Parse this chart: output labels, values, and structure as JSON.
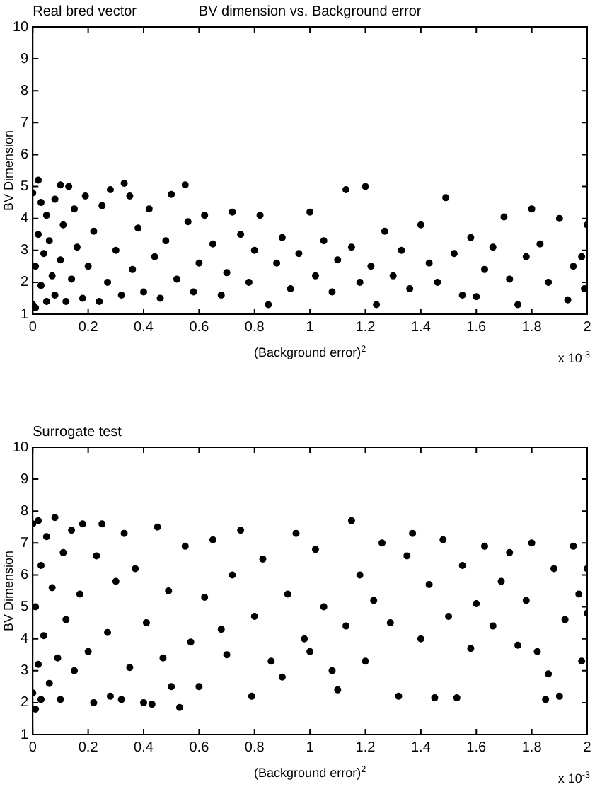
{
  "chart_data": [
    {
      "type": "scatter",
      "title": "BV dimension vs. Background error",
      "subtitle": "Real bred vector",
      "xlabel": "(Background error)$^{2}$",
      "ylabel": "BV Dimension",
      "annotations": [
        "x 10$^{-3}$"
      ],
      "xlim": [
        0,
        2
      ],
      "xticks": [
        0,
        0.2,
        0.4,
        0.6,
        0.8,
        1,
        1.2,
        1.4,
        1.6,
        1.8,
        2
      ],
      "ylim": [
        1,
        10
      ],
      "yticks": [
        1,
        2,
        3,
        4,
        5,
        6,
        7,
        8,
        9,
        10
      ],
      "grid": false,
      "legend": false,
      "marker": "circle",
      "series": [
        {
          "color": "#000000",
          "x": [
            0,
            0,
            0.01,
            0.01,
            0.02,
            0.02,
            0.03,
            0.03,
            0.04,
            0.05,
            0.05,
            0.06,
            0.07,
            0.08,
            0.08,
            0.1,
            0.1,
            0.11,
            0.12,
            0.13,
            0.14,
            0.15,
            0.16,
            0.18,
            0.19,
            0.2,
            0.22,
            0.24,
            0.25,
            0.27,
            0.28,
            0.3,
            0.32,
            0.33,
            0.35,
            0.36,
            0.38,
            0.4,
            0.42,
            0.44,
            0.46,
            0.48,
            0.5,
            0.52,
            0.55,
            0.56,
            0.58,
            0.6,
            0.62,
            0.65,
            0.68,
            0.7,
            0.72,
            0.75,
            0.78,
            0.8,
            0.82,
            0.85,
            0.88,
            0.9,
            0.93,
            0.96,
            1,
            1.02,
            1.05,
            1.08,
            1.1,
            1.13,
            1.15,
            1.18,
            1.2,
            1.22,
            1.24,
            1.27,
            1.3,
            1.33,
            1.36,
            1.4,
            1.43,
            1.46,
            1.49,
            1.52,
            1.55,
            1.58,
            1.6,
            1.63,
            1.66,
            1.7,
            1.72,
            1.75,
            1.78,
            1.8,
            1.83,
            1.86,
            1.9,
            1.93,
            1.95,
            1.98,
            2,
            1.99
          ],
          "values": [
            1.3,
            4.8,
            1.2,
            2.5,
            3.5,
            5.2,
            4.5,
            1.9,
            2.9,
            1.4,
            4.1,
            3.3,
            2.2,
            4.6,
            1.6,
            5.05,
            2.7,
            3.8,
            1.4,
            5,
            2.1,
            4.3,
            3.1,
            1.5,
            4.7,
            2.5,
            3.6,
            1.4,
            4.4,
            2,
            4.9,
            3,
            1.6,
            5.1,
            4.7,
            2.4,
            3.7,
            1.7,
            4.3,
            2.8,
            1.5,
            3.3,
            4.75,
            2.1,
            5.05,
            3.9,
            1.7,
            2.6,
            4.1,
            3.2,
            1.6,
            2.3,
            4.2,
            3.5,
            2,
            3,
            4.1,
            1.3,
            2.6,
            3.4,
            1.8,
            2.9,
            4.2,
            2.2,
            3.3,
            1.7,
            2.7,
            4.9,
            3.1,
            2,
            5,
            2.5,
            1.3,
            3.6,
            2.2,
            3,
            1.8,
            3.8,
            2.6,
            2,
            4.65,
            2.9,
            1.6,
            3.4,
            1.55,
            2.4,
            3.1,
            4.05,
            2.1,
            1.3,
            2.8,
            4.3,
            3.2,
            2,
            4,
            1.45,
            2.5,
            2.8,
            3.8,
            1.8
          ]
        }
      ]
    },
    {
      "type": "scatter",
      "title": "Surrogate test",
      "xlabel": "(Background error)$^{2}$",
      "ylabel": "BV Dimension",
      "annotations": [
        "x 10$^{-3}$"
      ],
      "xlim": [
        0,
        2
      ],
      "xticks": [
        0,
        0.2,
        0.4,
        0.6,
        0.8,
        1,
        1.2,
        1.4,
        1.6,
        1.8,
        2
      ],
      "ylim": [
        1,
        10
      ],
      "yticks": [
        1,
        2,
        3,
        4,
        5,
        6,
        7,
        8,
        9,
        10
      ],
      "grid": false,
      "legend": false,
      "marker": "circle",
      "series": [
        {
          "color": "#000000",
          "x": [
            0,
            0,
            0.01,
            0.01,
            0.02,
            0.02,
            0.03,
            0.03,
            0.04,
            0.05,
            0.06,
            0.07,
            0.08,
            0.09,
            0.1,
            0.11,
            0.12,
            0.14,
            0.15,
            0.17,
            0.18,
            0.2,
            0.22,
            0.23,
            0.25,
            0.27,
            0.28,
            0.3,
            0.32,
            0.33,
            0.35,
            0.37,
            0.4,
            0.41,
            0.43,
            0.45,
            0.47,
            0.49,
            0.5,
            0.53,
            0.55,
            0.57,
            0.6,
            0.62,
            0.65,
            0.68,
            0.7,
            0.72,
            0.75,
            0.79,
            0.8,
            0.83,
            0.86,
            0.9,
            0.92,
            0.95,
            0.98,
            1,
            1.02,
            1.05,
            1.08,
            1.1,
            1.13,
            1.15,
            1.18,
            1.2,
            1.23,
            1.26,
            1.29,
            1.32,
            1.35,
            1.37,
            1.4,
            1.43,
            1.45,
            1.48,
            1.5,
            1.53,
            1.55,
            1.58,
            1.6,
            1.63,
            1.66,
            1.69,
            1.72,
            1.75,
            1.78,
            1.8,
            1.82,
            1.85,
            1.86,
            1.88,
            1.9,
            1.92,
            1.95,
            1.97,
            1.98,
            2,
            2
          ],
          "values": [
            2.3,
            7.6,
            1.8,
            5,
            3.2,
            7.7,
            2.1,
            6.3,
            4.1,
            7.2,
            2.6,
            5.6,
            7.8,
            3.4,
            2.1,
            6.7,
            4.6,
            7.4,
            3,
            5.4,
            7.6,
            3.6,
            2,
            6.6,
            7.6,
            4.2,
            2.2,
            5.8,
            2.1,
            7.3,
            3.1,
            6.2,
            2,
            4.5,
            1.95,
            7.5,
            3.4,
            5.5,
            2.5,
            1.85,
            6.9,
            3.9,
            2.5,
            5.3,
            7.1,
            4.3,
            3.5,
            6,
            7.4,
            2.2,
            4.7,
            6.5,
            3.3,
            2.8,
            5.4,
            7.3,
            4,
            3.6,
            6.8,
            5,
            3,
            2.4,
            4.4,
            7.7,
            6,
            3.3,
            5.2,
            7,
            4.5,
            2.2,
            6.6,
            7.3,
            4,
            5.7,
            2.15,
            7.1,
            4.7,
            2.15,
            6.3,
            3.7,
            5.1,
            6.9,
            4.4,
            5.8,
            6.7,
            3.8,
            5.2,
            7,
            3.6,
            2.1,
            2.9,
            6.2,
            2.2,
            4.6,
            6.9,
            5.4,
            3.3,
            6.2,
            4.8
          ]
        }
      ]
    }
  ]
}
